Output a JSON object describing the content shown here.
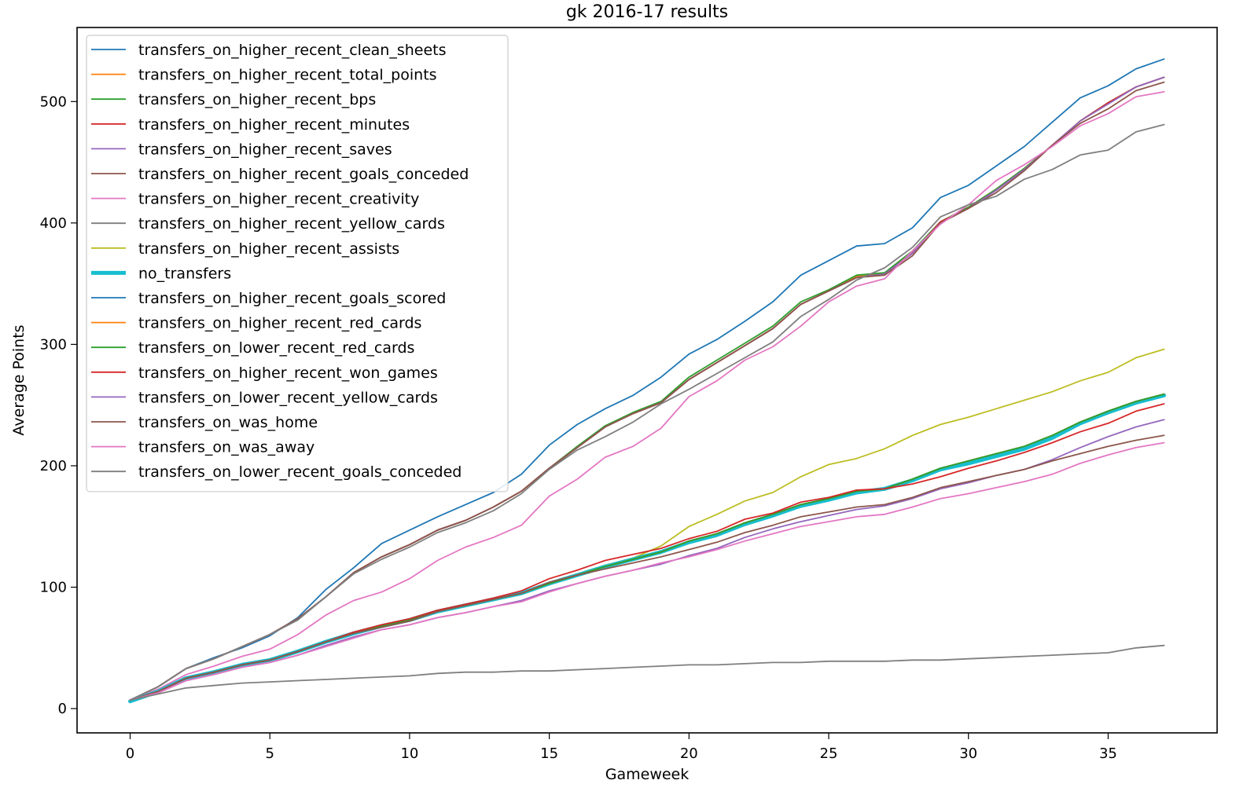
{
  "chart_data": {
    "type": "line",
    "title": "gk 2016-17 results",
    "xlabel": "Gameweek",
    "ylabel": "Average Points",
    "xlim": [
      -1.9,
      38.9
    ],
    "ylim": [
      -20,
      561
    ],
    "xticks": [
      0,
      5,
      10,
      15,
      20,
      25,
      30,
      35
    ],
    "yticks": [
      0,
      100,
      200,
      300,
      400,
      500
    ],
    "grid": false,
    "legend_position": "upper left",
    "x": [
      0,
      1,
      2,
      3,
      4,
      5,
      6,
      7,
      8,
      9,
      10,
      11,
      12,
      13,
      14,
      15,
      16,
      17,
      18,
      19,
      20,
      21,
      22,
      23,
      24,
      25,
      26,
      27,
      28,
      29,
      30,
      31,
      32,
      33,
      34,
      35,
      36,
      37
    ],
    "series": [
      {
        "name": "transfers_on_higher_recent_clean_sheets",
        "color": "#1f77b4",
        "values": [
          7,
          18,
          33,
          42,
          50,
          60,
          75,
          98,
          116,
          136,
          147,
          158,
          168,
          178,
          193,
          217,
          234,
          247,
          258,
          273,
          292,
          304,
          319,
          335,
          357,
          369,
          381,
          383,
          396,
          421,
          431,
          447,
          463,
          483,
          503,
          513,
          527,
          535
        ]
      },
      {
        "name": "transfers_on_higher_recent_total_points",
        "color": "#ff7f0e",
        "values": [
          7,
          18,
          33,
          41,
          51,
          61,
          74,
          92,
          112,
          125,
          135,
          147,
          155,
          166,
          179,
          198,
          215,
          232,
          243,
          252,
          271,
          285,
          299,
          313,
          333,
          344,
          356,
          358,
          376,
          401,
          413,
          428,
          445,
          464,
          484,
          499,
          512,
          520
        ]
      },
      {
        "name": "transfers_on_higher_recent_bps",
        "color": "#2ca02c",
        "values": [
          7,
          18,
          33,
          41,
          51,
          61,
          74,
          92,
          112,
          125,
          135,
          147,
          155,
          166,
          179,
          198,
          216,
          233,
          244,
          253,
          273,
          287,
          301,
          315,
          335,
          345,
          357,
          359,
          377,
          401,
          413,
          428,
          445,
          464,
          484,
          499,
          512,
          520
        ]
      },
      {
        "name": "transfers_on_higher_recent_minutes",
        "color": "#d62728",
        "values": [
          7,
          18,
          33,
          41,
          51,
          61,
          74,
          92,
          112,
          125,
          135,
          147,
          155,
          166,
          179,
          198,
          215,
          232,
          243,
          252,
          271,
          285,
          299,
          313,
          333,
          344,
          355,
          358,
          375,
          401,
          412,
          427,
          444,
          464,
          484,
          499,
          512,
          520
        ]
      },
      {
        "name": "transfers_on_higher_recent_saves",
        "color": "#9467bd",
        "values": [
          7,
          18,
          33,
          41,
          51,
          61,
          74,
          92,
          112,
          125,
          135,
          147,
          155,
          166,
          179,
          198,
          215,
          232,
          243,
          252,
          271,
          285,
          299,
          313,
          333,
          344,
          355,
          358,
          375,
          400,
          412,
          427,
          444,
          464,
          484,
          498,
          512,
          520
        ]
      },
      {
        "name": "transfers_on_higher_recent_goals_conceded",
        "color": "#8c564b",
        "values": [
          7,
          18,
          33,
          41,
          51,
          61,
          74,
          92,
          112,
          125,
          135,
          147,
          155,
          166,
          179,
          198,
          215,
          232,
          243,
          252,
          271,
          285,
          299,
          313,
          333,
          344,
          355,
          357,
          373,
          400,
          412,
          425,
          443,
          464,
          482,
          494,
          509,
          516
        ]
      },
      {
        "name": "transfers_on_higher_recent_creativity",
        "color": "#e377c2",
        "values": [
          7,
          16,
          28,
          35,
          43,
          49,
          61,
          77,
          89,
          96,
          107,
          122,
          133,
          141,
          151,
          175,
          189,
          207,
          216,
          231,
          257,
          270,
          287,
          298,
          315,
          335,
          348,
          354,
          377,
          399,
          415,
          435,
          448,
          463,
          480,
          490,
          504,
          508
        ]
      },
      {
        "name": "transfers_on_higher_recent_yellow_cards",
        "color": "#7f7f7f",
        "values": [
          7,
          18,
          33,
          41,
          51,
          61,
          73,
          92,
          111,
          123,
          133,
          145,
          153,
          163,
          177,
          197,
          213,
          224,
          236,
          251,
          263,
          276,
          289,
          302,
          323,
          337,
          353,
          363,
          380,
          405,
          415,
          422,
          436,
          444,
          456,
          460,
          475,
          481
        ]
      },
      {
        "name": "transfers_on_higher_recent_assists",
        "color": "#bcbd22",
        "values": [
          7,
          14,
          25,
          30,
          36,
          40,
          47,
          55,
          62,
          68,
          73,
          80,
          85,
          90,
          95,
          104,
          111,
          118,
          124,
          134,
          150,
          160,
          171,
          178,
          191,
          201,
          206,
          214,
          225,
          234,
          240,
          247,
          254,
          261,
          270,
          277,
          289,
          296
        ]
      },
      {
        "name": "no_transfers",
        "color": "#17becf",
        "values": [
          6,
          14,
          25,
          30,
          36,
          40,
          47,
          55,
          62,
          68,
          73,
          80,
          85,
          90,
          95,
          103,
          110,
          117,
          123,
          129,
          137,
          143,
          152,
          159,
          167,
          172,
          178,
          181,
          188,
          197,
          202,
          208,
          214,
          223,
          235,
          244,
          252,
          258
        ]
      },
      {
        "name": "transfers_on_higher_recent_goals_scored",
        "color": "#1f77b4",
        "values": [
          7,
          14,
          25,
          30,
          36,
          40,
          47,
          55,
          62,
          68,
          73,
          80,
          85,
          90,
          95,
          103,
          110,
          117,
          123,
          129,
          138,
          144,
          153,
          160,
          168,
          173,
          179,
          181,
          189,
          198,
          204,
          210,
          216,
          225,
          236,
          245,
          253,
          259
        ]
      },
      {
        "name": "transfers_on_higher_recent_red_cards",
        "color": "#ff7f0e",
        "values": [
          7,
          14,
          25,
          30,
          36,
          40,
          47,
          55,
          62,
          68,
          73,
          80,
          85,
          90,
          95,
          103,
          110,
          117,
          123,
          129,
          138,
          144,
          153,
          160,
          168,
          173,
          179,
          181,
          189,
          198,
          204,
          210,
          216,
          225,
          236,
          245,
          253,
          259
        ]
      },
      {
        "name": "transfers_on_lower_recent_red_cards",
        "color": "#2ca02c",
        "values": [
          7,
          14,
          25,
          30,
          36,
          40,
          47,
          55,
          62,
          68,
          73,
          80,
          85,
          90,
          95,
          103,
          110,
          117,
          123,
          129,
          138,
          144,
          153,
          160,
          168,
          173,
          179,
          181,
          189,
          198,
          204,
          210,
          216,
          225,
          236,
          245,
          253,
          259
        ]
      },
      {
        "name": "transfers_on_higher_recent_won_games",
        "color": "#d62728",
        "values": [
          7,
          14,
          25,
          30,
          36,
          40,
          47,
          55,
          63,
          69,
          74,
          81,
          86,
          91,
          97,
          107,
          114,
          122,
          127,
          132,
          140,
          146,
          156,
          161,
          170,
          174,
          180,
          181,
          185,
          191,
          198,
          204,
          211,
          219,
          228,
          235,
          245,
          251
        ]
      },
      {
        "name": "transfers_on_lower_recent_yellow_cards",
        "color": "#9467bd",
        "values": [
          7,
          13,
          23,
          28,
          34,
          38,
          44,
          52,
          59,
          65,
          69,
          75,
          79,
          84,
          89,
          97,
          103,
          109,
          114,
          119,
          126,
          132,
          141,
          148,
          154,
          159,
          164,
          167,
          173,
          181,
          186,
          192,
          197,
          205,
          215,
          224,
          232,
          238
        ]
      },
      {
        "name": "transfers_on_was_home",
        "color": "#8c564b",
        "values": [
          7,
          14,
          25,
          30,
          36,
          40,
          47,
          55,
          62,
          67,
          72,
          80,
          85,
          90,
          95,
          104,
          110,
          115,
          120,
          125,
          131,
          137,
          145,
          151,
          158,
          162,
          166,
          168,
          174,
          182,
          187,
          192,
          197,
          204,
          210,
          216,
          221,
          225
        ]
      },
      {
        "name": "transfers_on_was_away",
        "color": "#e377c2",
        "values": [
          7,
          13,
          23,
          28,
          34,
          38,
          44,
          51,
          58,
          65,
          69,
          75,
          79,
          84,
          88,
          96,
          103,
          109,
          114,
          120,
          125,
          131,
          138,
          144,
          150,
          154,
          158,
          160,
          166,
          173,
          177,
          182,
          187,
          193,
          202,
          209,
          215,
          219
        ]
      },
      {
        "name": "transfers_on_lower_recent_goals_conceded",
        "color": "#7f7f7f",
        "values": [
          7,
          12,
          17,
          19,
          21,
          22,
          23,
          24,
          25,
          26,
          27,
          29,
          30,
          30,
          31,
          31,
          32,
          33,
          34,
          35,
          36,
          36,
          37,
          38,
          38,
          39,
          39,
          39,
          40,
          40,
          41,
          42,
          43,
          44,
          45,
          46,
          50,
          52
        ]
      }
    ]
  }
}
